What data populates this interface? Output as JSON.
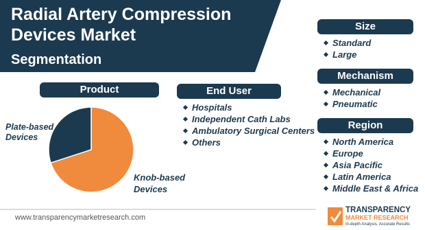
{
  "header": {
    "title": "Radial Artery Compression Devices Market",
    "subtitle": "Segmentation"
  },
  "chart_data": {
    "type": "pie",
    "title": "Product",
    "categories": [
      "Knob-based Devices",
      "Plate-based Devices"
    ],
    "values": [
      70,
      30
    ],
    "colors": [
      "#f08a3c",
      "#1c3a4f"
    ]
  },
  "segments": {
    "end_user": {
      "title": "End User",
      "items": [
        "Hospitals",
        "Independent Cath Labs",
        "Ambulatory Surgical Centers",
        "Others"
      ]
    },
    "size": {
      "title": "Size",
      "items": [
        "Standard",
        "Large"
      ]
    },
    "mechanism": {
      "title": "Mechanism",
      "items": [
        "Mechanical",
        "Pneumatic"
      ]
    },
    "region": {
      "title": "Region",
      "items": [
        "North America",
        "Europe",
        "Asia Pacific",
        "Latin America",
        "Middle East & Africa"
      ]
    }
  },
  "footer": {
    "url": "www.transparencymarketresearch.com",
    "logo_line1": "TRANSPARENCY",
    "logo_line2": "MARKET RESEARCH",
    "tagline": "In-depth Analysis, Accurate Results"
  }
}
